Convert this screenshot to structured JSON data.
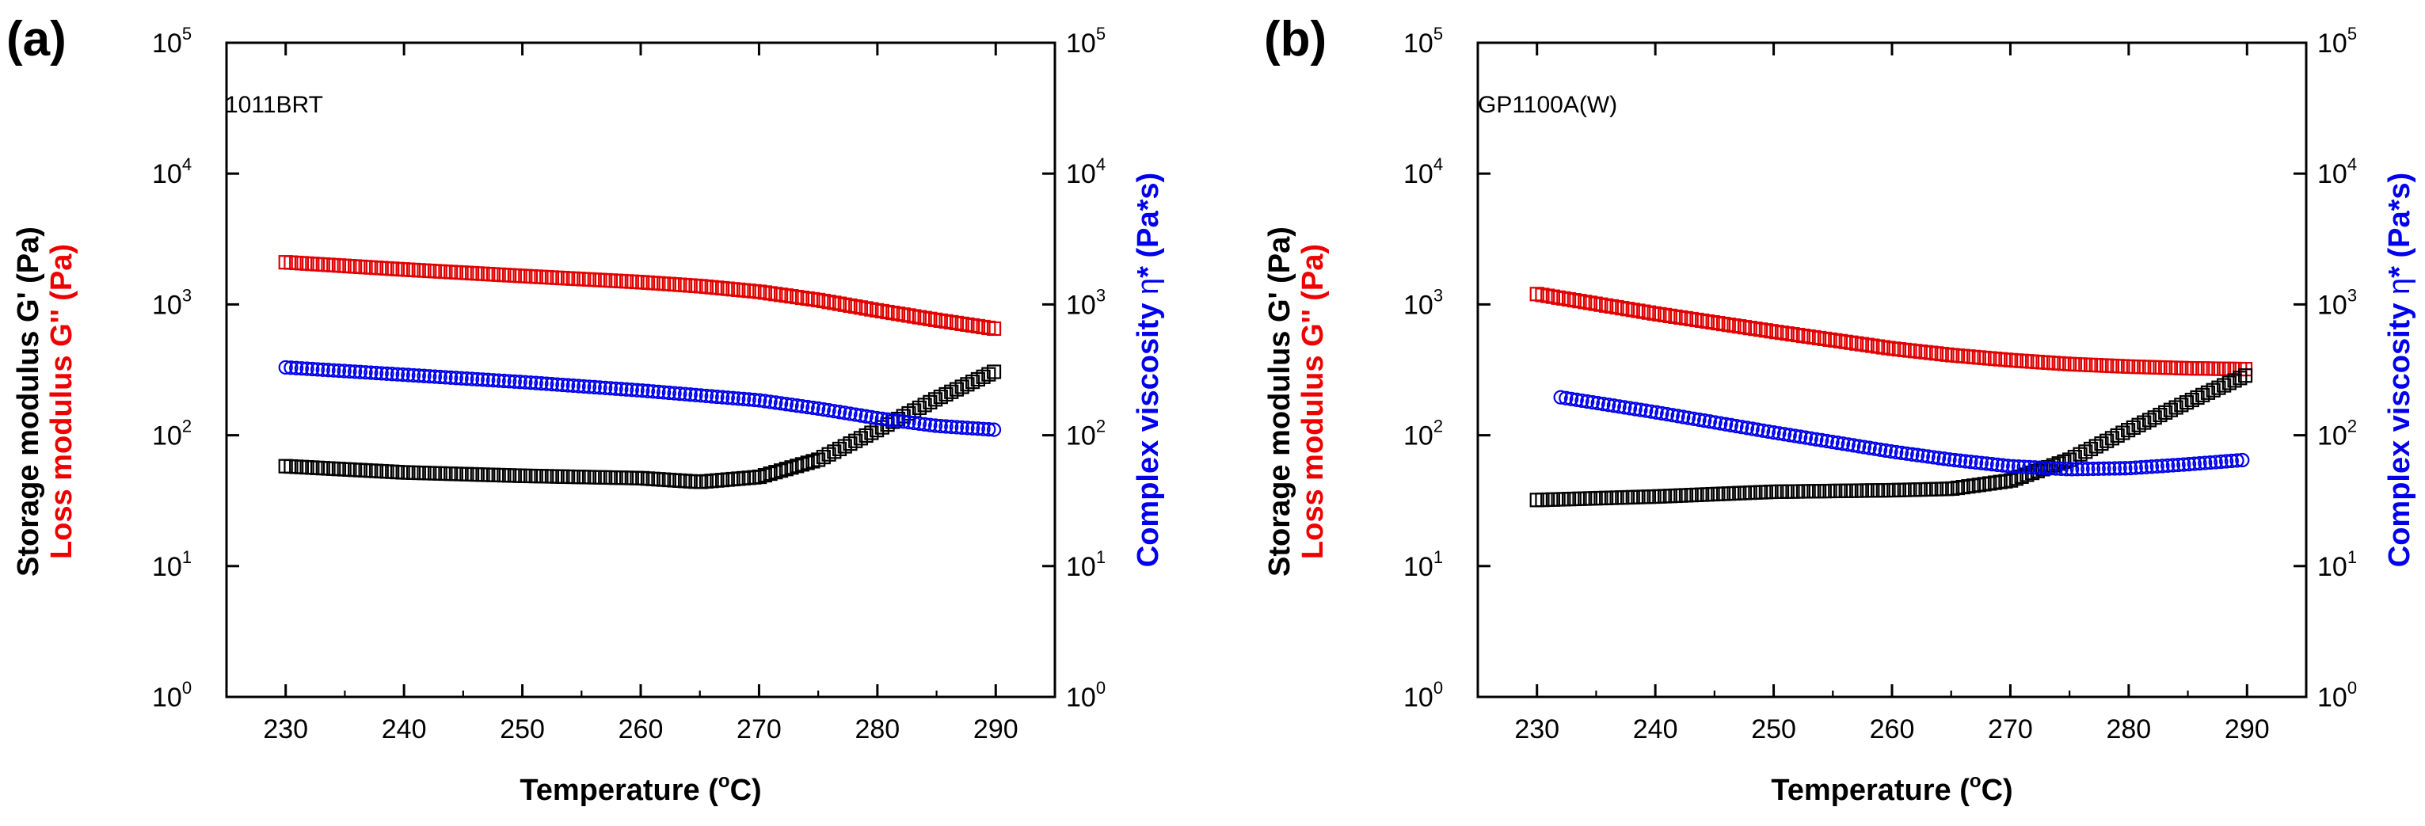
{
  "chart_data": [
    {
      "panel_label": "(a)",
      "sample_label": "1011BRT",
      "type": "scatter",
      "xlabel": "Temperature (°C)",
      "xlabel_parts": [
        "Temperature (",
        "o",
        "C)"
      ],
      "ylabel_left_line1": "Storage modulus G' (Pa)",
      "ylabel_left_line2": "Loss modulus G'' (Pa)",
      "ylabel_right_parts": [
        "Complex viscosity ",
        "η",
        "* (Pa*s)"
      ],
      "xlim": [
        225,
        295
      ],
      "ylim": [
        1,
        100000
      ],
      "yscale": "log",
      "x_ticks": [
        "230",
        "240",
        "250",
        "260",
        "270",
        "280",
        "290"
      ],
      "y_ticks": [
        {
          "base": "10",
          "exp": "0"
        },
        {
          "base": "10",
          "exp": "1"
        },
        {
          "base": "10",
          "exp": "2"
        },
        {
          "base": "10",
          "exp": "3"
        },
        {
          "base": "10",
          "exp": "4"
        },
        {
          "base": "10",
          "exp": "5"
        }
      ],
      "series": [
        {
          "color": "#e00000",
          "marker": "square",
          "x": [
            230,
            240,
            250,
            260,
            265,
            270,
            275,
            280,
            285,
            290
          ],
          "y": [
            2100,
            1850,
            1650,
            1480,
            1380,
            1250,
            1080,
            900,
            760,
            650
          ]
        },
        {
          "color": "#000000",
          "marker": "square",
          "x": [
            230,
            240,
            250,
            260,
            265,
            270,
            275,
            280,
            285,
            290
          ],
          "y": [
            58,
            52,
            49,
            47,
            44,
            48,
            65,
            110,
            190,
            310
          ]
        },
        {
          "color": "#0000ee",
          "marker": "circle",
          "x": [
            230,
            240,
            250,
            260,
            270,
            275,
            280,
            285,
            290
          ],
          "y": [
            330,
            290,
            255,
            220,
            185,
            160,
            135,
            118,
            110
          ]
        }
      ]
    },
    {
      "panel_label": "(b)",
      "sample_label": "GP1100A(W)",
      "type": "scatter",
      "xlabel": "Temperature (°C)",
      "xlabel_parts": [
        "Temperature (",
        "o",
        "C)"
      ],
      "ylabel_left_line1": "Storage modulus G' (Pa)",
      "ylabel_left_line2": "Loss modulus G'' (Pa)",
      "ylabel_right_parts": [
        "Complex viscosity ",
        "η",
        "* (Pa*s)"
      ],
      "xlim": [
        225,
        295
      ],
      "ylim": [
        1,
        100000
      ],
      "yscale": "log",
      "x_ticks": [
        "230",
        "240",
        "250",
        "260",
        "270",
        "280",
        "290"
      ],
      "y_ticks": [
        {
          "base": "10",
          "exp": "0"
        },
        {
          "base": "10",
          "exp": "1"
        },
        {
          "base": "10",
          "exp": "2"
        },
        {
          "base": "10",
          "exp": "3"
        },
        {
          "base": "10",
          "exp": "4"
        },
        {
          "base": "10",
          "exp": "5"
        }
      ],
      "series": [
        {
          "color": "#e00000",
          "marker": "square",
          "x": [
            230,
            240,
            250,
            260,
            265,
            270,
            275,
            280,
            285,
            290
          ],
          "y": [
            1200,
            850,
            620,
            460,
            410,
            375,
            350,
            335,
            325,
            320
          ]
        },
        {
          "color": "#000000",
          "marker": "square",
          "x": [
            230,
            240,
            250,
            260,
            265,
            270,
            275,
            280,
            285,
            290
          ],
          "y": [
            32,
            34,
            37,
            38,
            39,
            45,
            65,
            110,
            180,
            290
          ]
        },
        {
          "color": "#0000ee",
          "marker": "circle",
          "x": [
            232,
            240,
            250,
            260,
            265,
            270,
            275,
            280,
            285,
            290
          ],
          "y": [
            195,
            150,
            105,
            75,
            65,
            58,
            55,
            56,
            60,
            65
          ]
        }
      ]
    }
  ]
}
